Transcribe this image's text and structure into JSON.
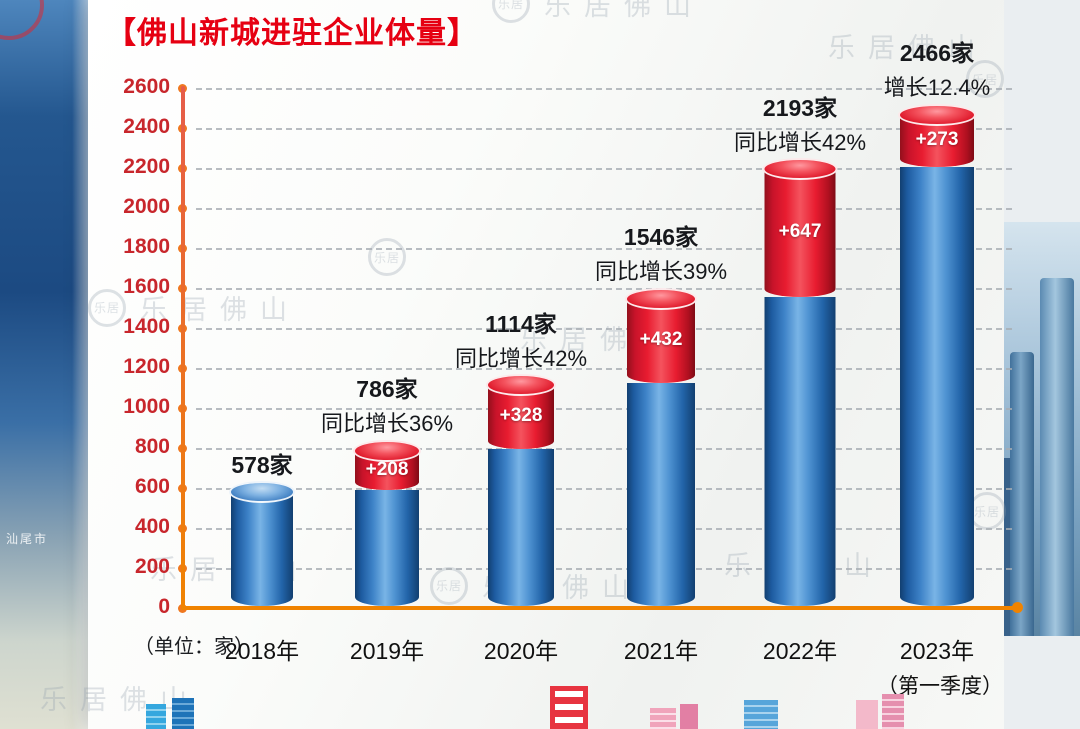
{
  "title": "【佛山新城进驻企业体量】",
  "unit_label": "（单位：家）",
  "watermark": {
    "text": "乐居佛山",
    "logo_text": "乐居"
  },
  "side": {
    "map_label": "汕尾市"
  },
  "chart_data": {
    "type": "bar",
    "title": "佛山新城进驻企业体量",
    "unit": "家",
    "stacked": true,
    "grid": "dashed",
    "ylim": [
      0,
      2600
    ],
    "ytick_step": 200,
    "yticks": [
      0,
      200,
      400,
      600,
      800,
      1000,
      1200,
      1400,
      1600,
      1800,
      2000,
      2200,
      2400,
      2600
    ],
    "categories": [
      "2018年",
      "2019年",
      "2020年",
      "2021年",
      "2022年",
      "2023年（第一季度）"
    ],
    "bars": [
      {
        "year": "2018年",
        "total": 578,
        "increase": 0,
        "total_label": "578家",
        "growth_label": "",
        "increase_label": ""
      },
      {
        "year": "2019年",
        "total": 786,
        "increase": 208,
        "total_label": "786家",
        "growth_label": "同比增长36%",
        "increase_label": "+208"
      },
      {
        "year": "2020年",
        "total": 1114,
        "increase": 328,
        "total_label": "1114家",
        "growth_label": "同比增长42%",
        "increase_label": "+328"
      },
      {
        "year": "2021年",
        "total": 1546,
        "increase": 432,
        "total_label": "1546家",
        "growth_label": "同比增长39%",
        "increase_label": "+432"
      },
      {
        "year": "2022年",
        "total": 2193,
        "increase": 647,
        "total_label": "2193家",
        "growth_label": "同比增长42%",
        "increase_label": "+647"
      },
      {
        "year": "2023年",
        "sub_label": "（第一季度）",
        "total": 2466,
        "increase": 273,
        "total_label": "2466家",
        "growth_label": "增长12.4%",
        "increase_label": "+273"
      }
    ],
    "colors": {
      "bar_blue": "#2f6fb5",
      "bar_red": "#e0162b",
      "axis": "#f08300",
      "tick_label": "#c8262c",
      "title": "#e60012"
    }
  }
}
